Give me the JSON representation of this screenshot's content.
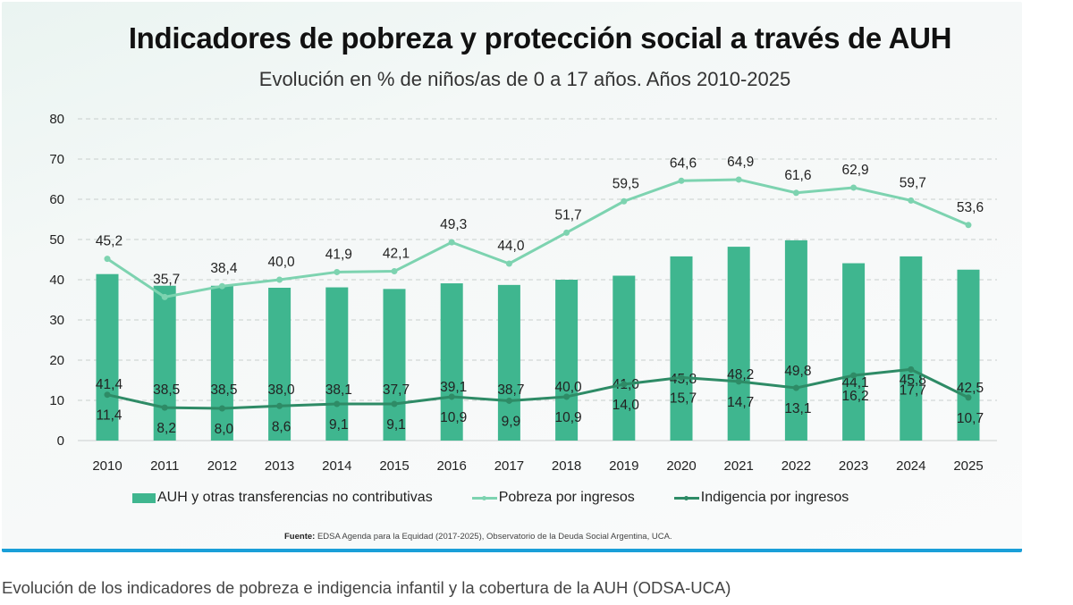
{
  "caption": "Evolución de los indicadores de pobreza e indigencia infantil y la cobertura de la AUH (ODSA-UCA)",
  "source": {
    "label": "Fuente:",
    "text": " EDSA Agenda para la Equidad (2017-2025), Observatorio de la Deuda Social Argentina, UCA."
  },
  "colors": {
    "bars": "#3fb68f",
    "poverty_line": "#7dd3b0",
    "indigence_line": "#2e8b66",
    "frame_border": "#1a9fd8",
    "gridline": "#c9cfcd"
  },
  "chart_data": {
    "type": "bar",
    "title": "Indicadores de pobreza y protección social a través de AUH",
    "subtitle": "Evolución en % de niños/as de 0 a 17 años. Años 2010-2025",
    "xlabel": "",
    "ylabel": "",
    "ylim": [
      0,
      80
    ],
    "yticks": [
      0,
      10,
      20,
      30,
      40,
      50,
      60,
      70,
      80
    ],
    "grid": true,
    "legend_position": "bottom",
    "categories": [
      "2010",
      "2011",
      "2012",
      "2013",
      "2014",
      "2015",
      "2016",
      "2017",
      "2018",
      "2019",
      "2020",
      "2021",
      "2022",
      "2023",
      "2024",
      "2025"
    ],
    "series": [
      {
        "name": "AUH y otras transferencias no contributivas",
        "type": "bar",
        "values": [
          41.4,
          38.5,
          38.5,
          38.0,
          38.1,
          37.7,
          39.1,
          38.7,
          40.0,
          41.0,
          45.8,
          48.2,
          49.8,
          44.1,
          45.8,
          42.5
        ],
        "labels": [
          "41,4",
          "38,5",
          "38,5",
          "38,0",
          "38,1",
          "37,7",
          "39,1",
          "38,7",
          "40,0",
          "41,0",
          "45,8",
          "48,2",
          "49,8",
          "44,1",
          "45,8",
          "42,5"
        ]
      },
      {
        "name": "Pobreza por ingresos",
        "type": "line",
        "values": [
          45.2,
          35.7,
          38.4,
          40.0,
          41.9,
          42.1,
          49.3,
          44.0,
          51.7,
          59.5,
          64.6,
          64.9,
          61.6,
          62.9,
          59.7,
          53.6
        ],
        "labels": [
          "45,2",
          "35,7",
          "38,4",
          "40,0",
          "41,9",
          "42,1",
          "49,3",
          "44,0",
          "51,7",
          "59,5",
          "64,6",
          "64,9",
          "61,6",
          "62,9",
          "59,7",
          "53,6"
        ]
      },
      {
        "name": "Indigencia por ingresos",
        "type": "line",
        "values": [
          11.4,
          8.2,
          8.0,
          8.6,
          9.1,
          9.1,
          10.9,
          9.9,
          10.9,
          14.0,
          15.7,
          14.7,
          13.1,
          16.2,
          17.7,
          10.7
        ],
        "labels": [
          "11,4",
          "8,2",
          "8,0",
          "8,6",
          "9,1",
          "9,1",
          "10,9",
          "9,9",
          "10,9",
          "14,0",
          "15,7",
          "14,7",
          "13,1",
          "16,2",
          "17,7",
          "10,7"
        ]
      }
    ]
  }
}
